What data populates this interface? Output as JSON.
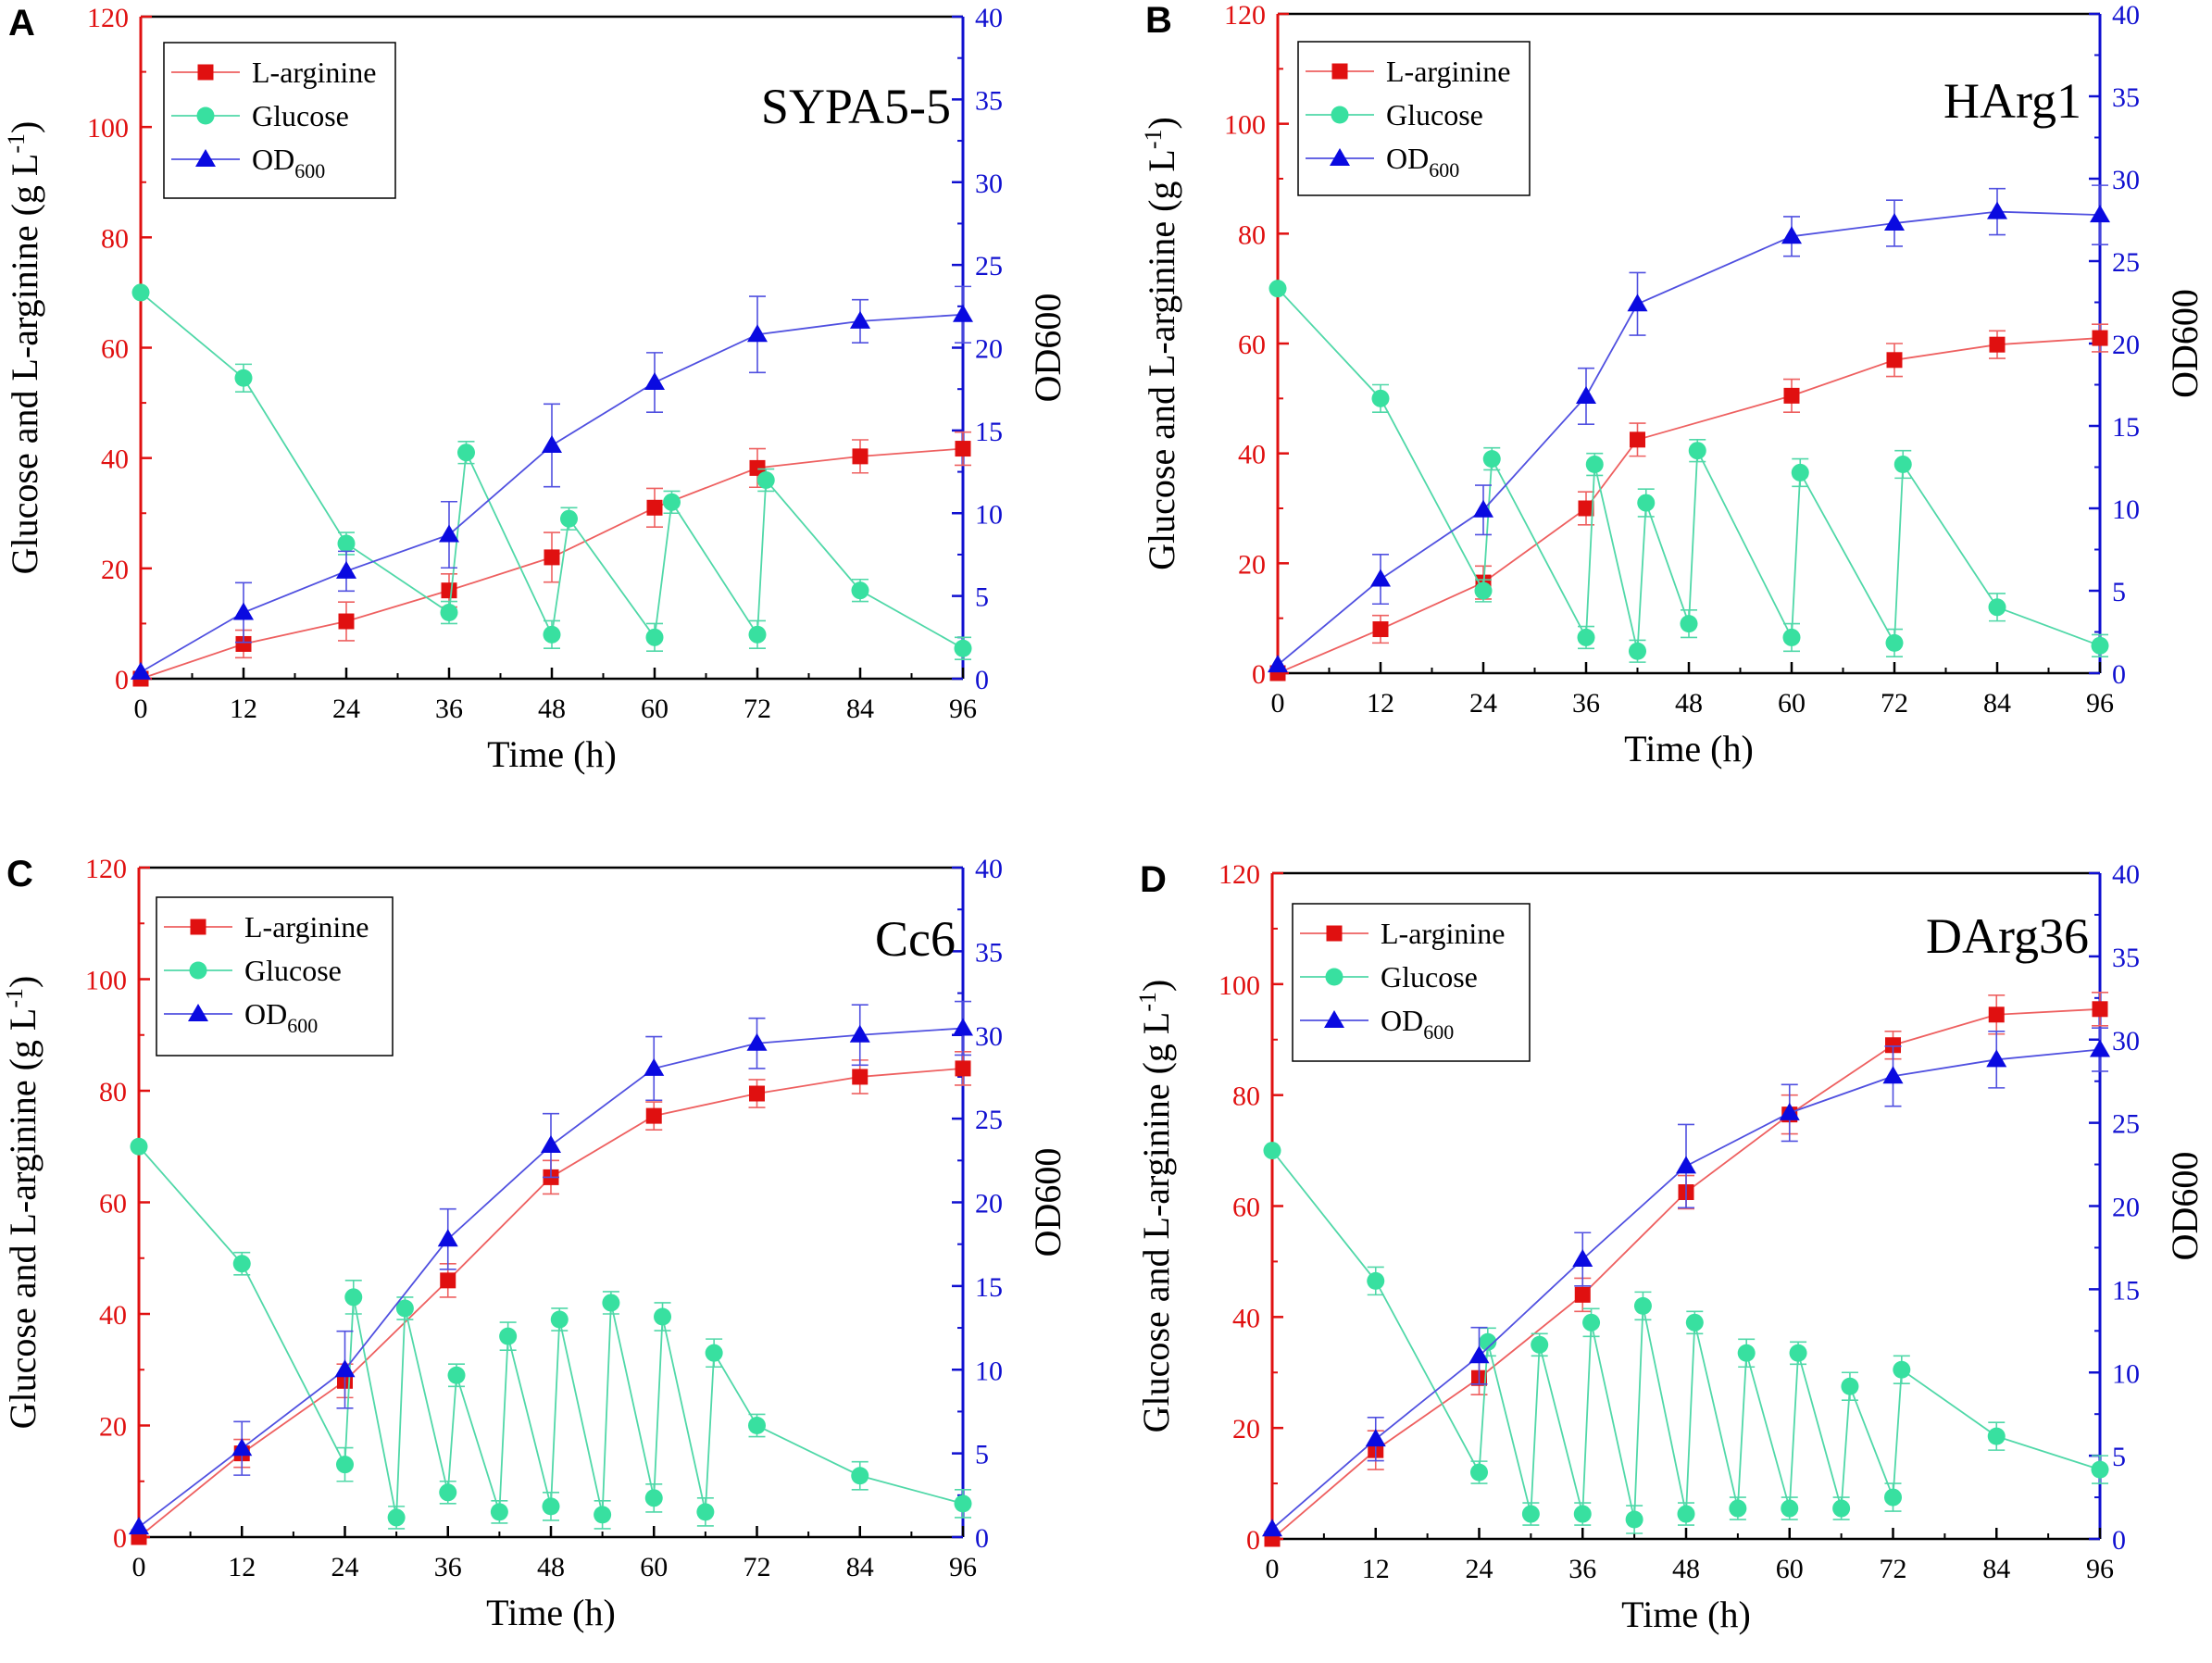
{
  "colors": {
    "left_axis": "#e01010",
    "right_axis": "#1010d0",
    "arginine": "#e01010",
    "arginine_line": "#ee6060",
    "glucose_fill": "#38e0a0",
    "glucose_line": "#50d8a8",
    "od_fill": "#0a0ae0",
    "od_line": "#5050e0",
    "frame": "#000000"
  },
  "shared": {
    "ylabel_left": "Glucose and L-arginine (g L",
    "ylabel_left_sup": "-1",
    "ylabel_left_end": ")",
    "ylabel_right": "OD600",
    "xlabel": "Time (h)",
    "legend_arginine": "L-arginine",
    "legend_glucose": "Glucose",
    "legend_od": "OD",
    "legend_od_sub": "600",
    "xlim": [
      0,
      96
    ],
    "xticks": [
      "0",
      "12",
      "24",
      "36",
      "48",
      "60",
      "72",
      "84",
      "96"
    ],
    "ylim_left": [
      0,
      120
    ],
    "yticks_left": [
      "0",
      "20",
      "40",
      "60",
      "80",
      "100",
      "120"
    ],
    "ylim_right": [
      0,
      40
    ],
    "yticks_right": [
      "0",
      "5",
      "10",
      "15",
      "20",
      "25",
      "30",
      "35",
      "40"
    ]
  },
  "chart_data": [
    {
      "panel": "A",
      "type": "line",
      "title": "SYPA5-5",
      "series": [
        {
          "name": "L-arginine",
          "axis": "left",
          "x": [
            0,
            12,
            24,
            36,
            48,
            60,
            72,
            84,
            96
          ],
          "y": [
            0,
            6.3,
            10.4,
            16,
            22,
            31,
            38.2,
            40.3,
            41.7
          ],
          "err": [
            0,
            2.5,
            3.5,
            3,
            4.5,
            3.5,
            3.5,
            3,
            3
          ]
        },
        {
          "name": "Glucose",
          "axis": "left",
          "x": [
            0,
            12,
            24,
            36,
            38,
            48,
            50,
            60,
            62,
            72,
            73,
            84,
            96
          ],
          "y": [
            70,
            54.5,
            24.5,
            12,
            41,
            8,
            29,
            7.5,
            32,
            8,
            36,
            16,
            5.5
          ],
          "err": [
            0,
            2.5,
            2,
            2,
            2,
            2.5,
            2,
            2.5,
            2,
            2.5,
            2,
            2,
            2
          ]
        },
        {
          "name": "OD600",
          "axis": "right",
          "x": [
            0,
            12,
            24,
            36,
            48,
            60,
            72,
            84,
            96
          ],
          "y": [
            0.4,
            4,
            6.5,
            8.7,
            14.1,
            17.9,
            20.8,
            21.6,
            22
          ],
          "err": [
            0,
            1.8,
            1.2,
            2,
            2.5,
            1.8,
            2.3,
            1.3,
            1.7
          ]
        }
      ]
    },
    {
      "panel": "B",
      "type": "line",
      "title": "HArg1",
      "series": [
        {
          "name": "L-arginine",
          "axis": "left",
          "x": [
            0,
            12,
            24,
            36,
            42,
            60,
            72,
            84,
            96
          ],
          "y": [
            0,
            8,
            16.5,
            30,
            42.5,
            50.5,
            57,
            59.8,
            61
          ],
          "err": [
            0,
            2.5,
            3,
            3,
            3,
            3,
            3,
            2.5,
            2.5
          ]
        },
        {
          "name": "Glucose",
          "axis": "left",
          "x": [
            0,
            12,
            24,
            25,
            36,
            37,
            42,
            43,
            48,
            49,
            60,
            61,
            72,
            73,
            84,
            96
          ],
          "y": [
            70,
            50,
            15,
            39,
            6.5,
            38,
            4,
            31,
            9,
            40.5,
            6.5,
            36.5,
            5.5,
            38,
            12,
            5
          ],
          "err": [
            0,
            2.5,
            2,
            2,
            2,
            2,
            2,
            2.5,
            2.5,
            2,
            2.5,
            2.5,
            2.5,
            2.5,
            2.5,
            2
          ]
        },
        {
          "name": "OD600",
          "axis": "right",
          "x": [
            0,
            12,
            24,
            36,
            42,
            60,
            72,
            84,
            96
          ],
          "y": [
            0.5,
            5.7,
            9.9,
            16.8,
            22.4,
            26.5,
            27.3,
            28,
            27.8
          ],
          "err": [
            0,
            1.5,
            1.5,
            1.7,
            1.9,
            1.2,
            1.4,
            1.4,
            1.8
          ]
        }
      ]
    },
    {
      "panel": "C",
      "type": "line",
      "title": "Cc6",
      "series": [
        {
          "name": "L-arginine",
          "axis": "left",
          "x": [
            0,
            12,
            24,
            36,
            48,
            60,
            72,
            84,
            96
          ],
          "y": [
            0,
            15,
            28,
            46,
            64.5,
            75.5,
            79.5,
            82.5,
            84
          ],
          "err": [
            0,
            2.5,
            3,
            3,
            3,
            2.5,
            2.5,
            3,
            3
          ]
        },
        {
          "name": "Glucose",
          "axis": "left",
          "x": [
            0,
            12,
            24,
            25,
            30,
            31,
            36,
            37,
            42,
            43,
            48,
            49,
            54,
            55,
            60,
            61,
            66,
            67,
            72,
            84,
            96
          ],
          "y": [
            70,
            49,
            13,
            43,
            3.5,
            41,
            8,
            29,
            4.5,
            36,
            5.5,
            39,
            4,
            42,
            7,
            39.5,
            4.5,
            33,
            20,
            11,
            6
          ],
          "err": [
            0,
            2,
            3,
            3,
            2,
            2,
            2,
            2,
            2,
            2.5,
            2.5,
            2,
            2.5,
            2,
            2.5,
            2.5,
            2.5,
            2.5,
            2,
            2.5,
            2.5
          ]
        },
        {
          "name": "OD600",
          "axis": "right",
          "x": [
            0,
            12,
            24,
            36,
            48,
            60,
            72,
            84,
            96
          ],
          "y": [
            0.6,
            5.3,
            10,
            17.8,
            23.4,
            28,
            29.5,
            30,
            30.4
          ],
          "err": [
            0,
            1.6,
            2.3,
            1.8,
            1.9,
            1.9,
            1.5,
            1.8,
            1.6
          ]
        }
      ]
    },
    {
      "panel": "D",
      "type": "line",
      "title": "DArg36",
      "series": [
        {
          "name": "L-arginine",
          "axis": "left",
          "x": [
            0,
            12,
            24,
            36,
            48,
            60,
            72,
            84,
            96
          ],
          "y": [
            0,
            16,
            29,
            44,
            62.5,
            76.5,
            89,
            94.5,
            95.5
          ],
          "err": [
            0,
            3.5,
            3,
            3,
            3,
            3.5,
            2.5,
            3.5,
            3
          ]
        },
        {
          "name": "Glucose",
          "axis": "left",
          "x": [
            0,
            12,
            24,
            25,
            30,
            31,
            36,
            37,
            42,
            43,
            48,
            49,
            54,
            55,
            60,
            61,
            66,
            67,
            72,
            73,
            84,
            96
          ],
          "y": [
            70,
            46.5,
            12,
            35.5,
            4.5,
            35,
            4.5,
            39,
            3.5,
            42,
            4.5,
            39,
            5.5,
            33.5,
            5.5,
            33.5,
            5.5,
            27.5,
            7.5,
            30.5,
            18.5,
            12.5
          ],
          "err": [
            0,
            2.5,
            2,
            2.5,
            2,
            2,
            2,
            2.5,
            2.5,
            2.5,
            2,
            2,
            2,
            2.5,
            2,
            2,
            2,
            2.5,
            2.5,
            2.5,
            2.5,
            2.5
          ]
        },
        {
          "name": "OD600",
          "axis": "right",
          "x": [
            0,
            12,
            24,
            36,
            48,
            60,
            72,
            84,
            96
          ],
          "y": [
            0.6,
            6,
            11,
            16.8,
            22.4,
            25.6,
            27.8,
            28.8,
            29.4
          ],
          "err": [
            0,
            1.3,
            1.7,
            1.6,
            2.5,
            1.7,
            1.8,
            1.7,
            1.3
          ]
        }
      ]
    }
  ]
}
